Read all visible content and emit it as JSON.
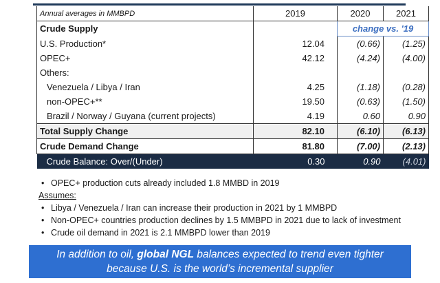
{
  "table": {
    "header": {
      "label": "Annual averages in MMBPD",
      "y2019": "2019",
      "y2020": "2020",
      "y2021": "2021"
    },
    "crude_supply": {
      "label": "Crude Supply",
      "change_note": "change vs. '19"
    },
    "rows": [
      {
        "label": "U.S. Production*",
        "v2019": "12.04",
        "v2020": "(0.66)",
        "v2021": "(1.25)"
      },
      {
        "label": "OPEC+",
        "v2019": "42.12",
        "v2020": "(4.24)",
        "v2021": "(4.00)"
      },
      {
        "label": "Others:",
        "v2019": "",
        "v2020": "",
        "v2021": ""
      },
      {
        "label": "Venezuela / Libya / Iran",
        "v2019": "4.25",
        "v2020": "(1.18)",
        "v2021": "(0.28)"
      },
      {
        "label": "non-OPEC+**",
        "v2019": "19.50",
        "v2020": "(0.63)",
        "v2021": "(1.50)"
      },
      {
        "label": "Brazil / Norway / Guyana (current projects)",
        "v2019": "4.19",
        "v2020": "0.60",
        "v2021": "0.90"
      }
    ],
    "total_supply": {
      "label": "Total Supply Change",
      "v2019": "82.10",
      "v2020": "(6.10)",
      "v2021": "(6.13)"
    },
    "demand": {
      "label": "Crude Demand Change",
      "v2019": "81.80",
      "v2020": "(7.00)",
      "v2021": "(2.13)"
    },
    "balance": {
      "label": "Crude Balance:  Over/(Under)",
      "v2019": "0.30",
      "v2020": "0.90",
      "v2021": "(4.01)"
    }
  },
  "notes": {
    "bullet1": "OPEC+ production cuts already included 1.8 MMBD in 2019",
    "assumes_label": "Assumes:",
    "bullets": [
      "Libya / Venezuela / Iran can increase their production in 2021 by 1 MMBPD",
      "Non-OPEC+ countries production declines by 1.5 MMBPD in 2021 due to lack of investment",
      "Crude oil demand in 2021 is 2.1 MMBPD lower than 2019"
    ],
    "bullet_glyph": "•"
  },
  "banner": {
    "line1_pre": "In addition to oil, ",
    "line1_bold": "global NGL",
    "line1_post": " balances expected to trend even tighter",
    "line2": "because U.S. is the world’s incremental supplier"
  },
  "colors": {
    "banner": "#2e6fd1",
    "balance_row": "#1b2c44",
    "change_note": "#3d6fc1"
  }
}
